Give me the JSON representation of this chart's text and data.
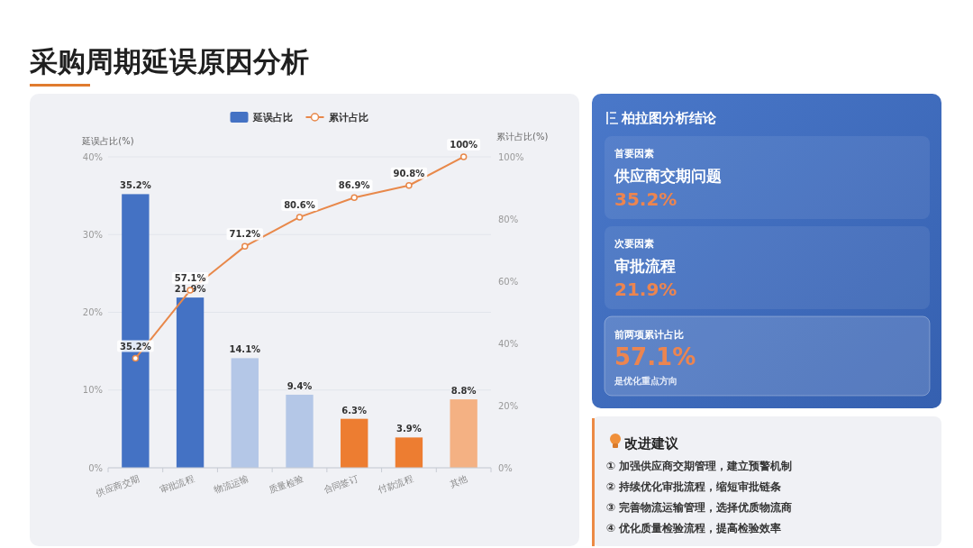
{
  "chart_data": [
    {
      "type": "bar",
      "title": "采购周期延误原因分析",
      "categories": [
        "供应商交期",
        "审批流程",
        "物流运输",
        "质量检验",
        "合同签订",
        "付款流程",
        "其他"
      ],
      "ylabel": "延误占比(%)",
      "y2label": "累计占比(%)",
      "ylim": [
        0,
        40
      ],
      "yticks": [
        {
          "value": 0,
          "label": "0%"
        },
        {
          "value": 10,
          "label": "10%"
        },
        {
          "value": 20,
          "label": "20%"
        },
        {
          "value": 30,
          "label": "30%"
        },
        {
          "value": 40,
          "label": "40%"
        }
      ],
      "y2lim": [
        0,
        100
      ],
      "y2ticks": [
        {
          "value": 0,
          "label": "0%"
        },
        {
          "value": 20,
          "label": "20%"
        },
        {
          "value": 40,
          "label": "40%"
        },
        {
          "value": 60,
          "label": "60%"
        },
        {
          "value": 80,
          "label": "80%"
        },
        {
          "value": 100,
          "label": "100%"
        }
      ],
      "grid": "y",
      "legend": "top",
      "marker": "circle",
      "series": [
        {
          "name": "延误占比",
          "type": "bar",
          "color": "#4472c4",
          "colors": [
            "#4472c4",
            "#4472c4",
            "#b4c7e7",
            "#b4c7e7",
            "#ed7d31",
            "#ed7d31",
            "#f4b183"
          ],
          "values": [
            35.2,
            21.9,
            14.1,
            9.4,
            6.3,
            3.9,
            8.8
          ],
          "value_labels": [
            "35.2%",
            "21.9%",
            "14.1%",
            "9.4%",
            "6.3%",
            "3.9%",
            "8.8%"
          ]
        },
        {
          "name": "累计占比",
          "type": "line",
          "axis": "y2",
          "color": "#e8884a",
          "values": [
            35.2,
            57.1,
            71.2,
            80.6,
            86.9,
            90.8,
            100
          ],
          "value_labels": [
            "35.2%",
            "57.1%",
            "71.2%",
            "80.6%",
            "86.9%",
            "90.8%",
            "100%"
          ]
        }
      ]
    },
    {
      "type": "other",
      "title": "柏拉图分析结论",
      "annotations": [
        "首要因素",
        "供应商交期问题",
        "35.2%",
        "次要因素",
        "审批流程",
        "21.9%",
        "前两项累计占比",
        "57.1%",
        "是优化重点方向"
      ]
    },
    {
      "type": "other",
      "title": "改进建议",
      "annotations": [
        "① 加强供应商交期管理，建立预警机制",
        "② 持续优化审批流程，缩短审批链条",
        "③ 完善物流运输管理，选择优质物流商",
        "④ 优化质量检验流程，提高检验效率"
      ]
    }
  ]
}
